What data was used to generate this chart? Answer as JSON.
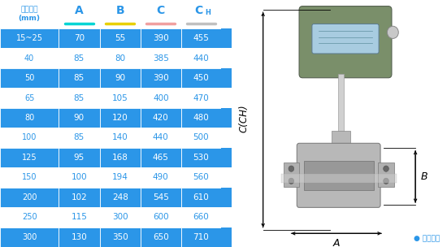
{
  "headers_col0": "仪表口径\n(mm)",
  "header_cols": [
    "A",
    "B",
    "C",
    "C"
  ],
  "header_subs": [
    "",
    "",
    "",
    "H"
  ],
  "underline_colors": [
    "#00d4d4",
    "#e8d000",
    "#f0a0a0",
    "#c0c0c0"
  ],
  "rows": [
    [
      "15~25",
      "70",
      "55",
      "390",
      "455"
    ],
    [
      "40",
      "85",
      "80",
      "385",
      "440"
    ],
    [
      "50",
      "85",
      "90",
      "390",
      "450"
    ],
    [
      "65",
      "85",
      "105",
      "400",
      "470"
    ],
    [
      "80",
      "90",
      "120",
      "420",
      "480"
    ],
    [
      "100",
      "85",
      "140",
      "440",
      "500"
    ],
    [
      "125",
      "95",
      "168",
      "465",
      "530"
    ],
    [
      "150",
      "100",
      "194",
      "490",
      "560"
    ],
    [
      "200",
      "102",
      "248",
      "545",
      "610"
    ],
    [
      "250",
      "115",
      "300",
      "600",
      "660"
    ],
    [
      "300",
      "130",
      "350",
      "650",
      "710"
    ]
  ],
  "row_bg_dark": "#2b96e8",
  "row_bg_light": "#ffffff",
  "header_bg": "#ffffff",
  "text_dark": "#ffffff",
  "text_light": "#2b96e8",
  "header_text": "#2b96e8",
  "border_color": "#ffffff",
  "right_bg": "#ffffff",
  "side_blue": "#2b96e8",
  "label_cch": "C(CH)",
  "label_a": "A",
  "label_b": "B",
  "note": "● 常规仪表",
  "note_color": "#2b96e8"
}
